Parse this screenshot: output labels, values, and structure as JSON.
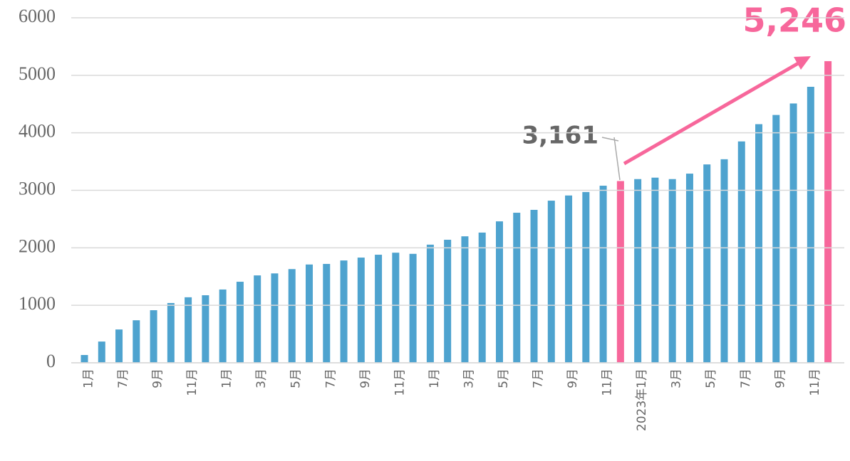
{
  "chart_data": {
    "type": "bar",
    "categories": [
      "1月",
      null,
      "7月",
      null,
      "9月",
      null,
      "11月",
      null,
      "1月",
      null,
      "3月",
      null,
      "5月",
      null,
      "7月",
      null,
      "9月",
      null,
      "11月",
      null,
      "1月",
      null,
      "3月",
      null,
      "5月",
      null,
      "7月",
      null,
      "9月",
      null,
      "11月",
      null,
      "2023年1月",
      null,
      "3月",
      null,
      "5月",
      null,
      "7月",
      null,
      "9月",
      null,
      "11月",
      null
    ],
    "values": [
      136,
      370,
      580,
      740,
      915,
      1040,
      1140,
      1175,
      1275,
      1410,
      1520,
      1555,
      1630,
      1710,
      1720,
      1780,
      1830,
      1880,
      1915,
      1895,
      2055,
      2140,
      2200,
      2265,
      2460,
      2610,
      2660,
      2820,
      2910,
      2970,
      3080,
      3161,
      3195,
      3220,
      3195,
      3290,
      3450,
      3540,
      3850,
      4150,
      4310,
      4510,
      4800,
      5246
    ],
    "value_labels": [
      null,
      null,
      null,
      null,
      null,
      null,
      null,
      null,
      null,
      null,
      null,
      null,
      null,
      null,
      null,
      null,
      null,
      null,
      null,
      null,
      null,
      null,
      null,
      null,
      null,
      null,
      null,
      null,
      null,
      null,
      null,
      "3,161",
      null,
      null,
      null,
      null,
      null,
      null,
      null,
      null,
      null,
      null,
      null,
      "5,246"
    ],
    "colors": [
      "#4ea3cf",
      "#4ea3cf",
      "#4ea3cf",
      "#4ea3cf",
      "#4ea3cf",
      "#4ea3cf",
      "#4ea3cf",
      "#4ea3cf",
      "#4ea3cf",
      "#4ea3cf",
      "#4ea3cf",
      "#4ea3cf",
      "#4ea3cf",
      "#4ea3cf",
      "#4ea3cf",
      "#4ea3cf",
      "#4ea3cf",
      "#4ea3cf",
      "#4ea3cf",
      "#4ea3cf",
      "#4ea3cf",
      "#4ea3cf",
      "#4ea3cf",
      "#4ea3cf",
      "#4ea3cf",
      "#4ea3cf",
      "#4ea3cf",
      "#4ea3cf",
      "#4ea3cf",
      "#4ea3cf",
      "#4ea3cf",
      "#f7679b",
      "#4ea3cf",
      "#4ea3cf",
      "#4ea3cf",
      "#4ea3cf",
      "#4ea3cf",
      "#4ea3cf",
      "#4ea3cf",
      "#4ea3cf",
      "#4ea3cf",
      "#4ea3cf",
      "#4ea3cf",
      "#f7679b"
    ],
    "ylim": [
      0,
      6000
    ],
    "yticks": [
      0,
      1000,
      2000,
      3000,
      4000,
      5000,
      6000
    ],
    "grid": true
  }
}
